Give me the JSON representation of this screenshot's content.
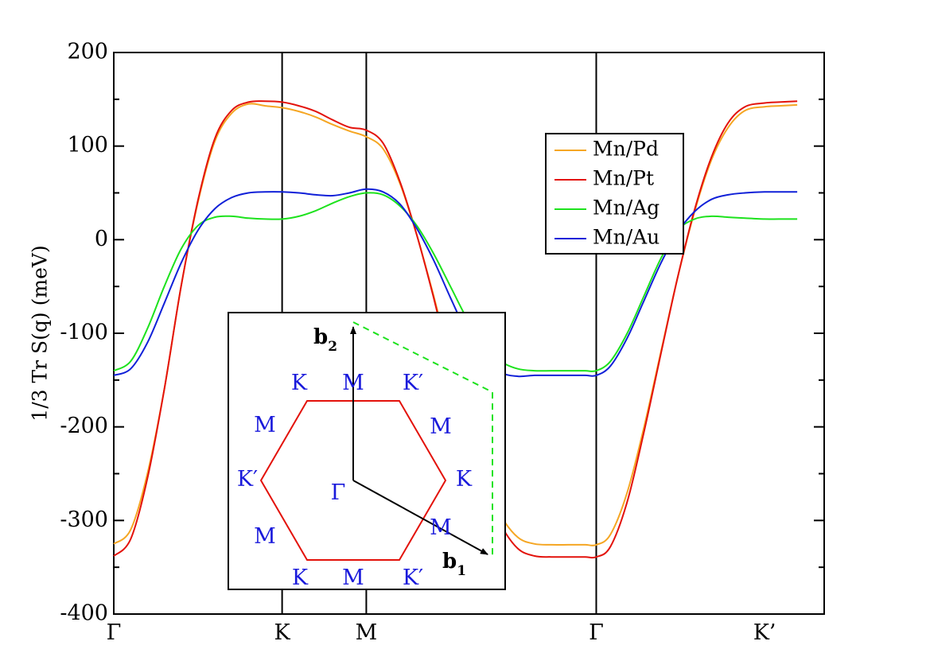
{
  "chart_data": {
    "type": "line",
    "title": "",
    "xlabel": "",
    "ylabel": "1/3 Tr S(q) (meV)",
    "ylim": [
      -400,
      200
    ],
    "yticks": [
      -400,
      -300,
      -200,
      -100,
      0,
      100,
      200
    ],
    "ytick_labels": [
      "-400",
      "-300",
      "-200",
      "-100",
      "0",
      "100",
      "200"
    ],
    "xlim": [
      0,
      4.22
    ],
    "xticks": [
      {
        "label": "Γ",
        "x": 0.0
      },
      {
        "label": "K",
        "x": 1.0
      },
      {
        "label": "M",
        "x": 1.5
      },
      {
        "label": "Γ",
        "x": 2.866
      },
      {
        "label": "K’",
        "x": 3.866
      }
    ],
    "grid": false,
    "legend_position": "top-right",
    "series": [
      {
        "name": "Mn/Pd",
        "color": "#f5a623",
        "x": [
          0.0,
          0.1,
          0.2,
          0.3,
          0.4,
          0.5,
          0.6,
          0.7,
          0.8,
          0.9,
          1.0,
          1.1,
          1.2,
          1.3,
          1.4,
          1.5,
          1.6,
          1.7,
          1.8,
          1.9,
          2.0,
          2.1,
          2.2,
          2.3,
          2.4,
          2.5,
          2.6,
          2.7,
          2.8,
          2.866,
          2.95,
          3.05,
          3.15,
          3.25,
          3.35,
          3.45,
          3.55,
          3.65,
          3.75,
          3.866,
          3.95,
          4.06
        ],
        "values": [
          -325,
          -310,
          -250,
          -160,
          -50,
          40,
          105,
          135,
          145,
          143,
          141,
          137,
          131,
          123,
          116,
          110,
          97,
          60,
          5,
          -60,
          -130,
          -200,
          -255,
          -295,
          -318,
          -325,
          -326,
          -326,
          -326,
          -326,
          -315,
          -270,
          -200,
          -120,
          -40,
          30,
          85,
          120,
          138,
          142,
          143,
          144
        ]
      },
      {
        "name": "Mn/Pt",
        "color": "#e3120b",
        "x": [
          0.0,
          0.1,
          0.2,
          0.3,
          0.4,
          0.5,
          0.6,
          0.7,
          0.8,
          0.9,
          1.0,
          1.1,
          1.2,
          1.3,
          1.4,
          1.5,
          1.6,
          1.7,
          1.8,
          1.9,
          2.0,
          2.1,
          2.2,
          2.3,
          2.4,
          2.5,
          2.6,
          2.7,
          2.8,
          2.866,
          2.95,
          3.05,
          3.15,
          3.25,
          3.35,
          3.45,
          3.55,
          3.65,
          3.75,
          3.866,
          3.95,
          4.06
        ],
        "values": [
          -338,
          -320,
          -255,
          -160,
          -50,
          42,
          108,
          138,
          147,
          148,
          147,
          143,
          137,
          128,
          120,
          117,
          103,
          62,
          5,
          -62,
          -135,
          -208,
          -265,
          -305,
          -330,
          -338,
          -339,
          -339,
          -339,
          -339,
          -328,
          -280,
          -205,
          -122,
          -40,
          32,
          88,
          125,
          142,
          146,
          147,
          148
        ]
      },
      {
        "name": "Mn/Ag",
        "color": "#1de21d",
        "x": [
          0.0,
          0.1,
          0.2,
          0.3,
          0.4,
          0.5,
          0.6,
          0.7,
          0.8,
          0.9,
          1.0,
          1.1,
          1.2,
          1.3,
          1.4,
          1.5,
          1.6,
          1.7,
          1.8,
          1.9,
          2.0,
          2.1,
          2.2,
          2.3,
          2.4,
          2.5,
          2.6,
          2.7,
          2.8,
          2.866,
          2.95,
          3.05,
          3.15,
          3.25,
          3.35,
          3.45,
          3.55,
          3.65,
          3.75,
          3.866,
          3.95,
          4.06
        ],
        "values": [
          -140,
          -130,
          -95,
          -50,
          -10,
          15,
          24,
          25,
          23,
          22,
          22,
          25,
          31,
          39,
          46,
          50,
          48,
          36,
          15,
          -15,
          -50,
          -85,
          -112,
          -130,
          -138,
          -140,
          -140,
          -140,
          -140,
          -140,
          -130,
          -100,
          -60,
          -20,
          10,
          22,
          25,
          24,
          23,
          22,
          22,
          22
        ]
      },
      {
        "name": "Mn/Au",
        "color": "#1020d8",
        "x": [
          0.0,
          0.1,
          0.2,
          0.3,
          0.4,
          0.5,
          0.6,
          0.7,
          0.8,
          0.9,
          1.0,
          1.1,
          1.2,
          1.3,
          1.4,
          1.5,
          1.6,
          1.7,
          1.8,
          1.9,
          2.0,
          2.1,
          2.2,
          2.3,
          2.4,
          2.5,
          2.6,
          2.7,
          2.8,
          2.866,
          2.95,
          3.05,
          3.15,
          3.25,
          3.35,
          3.45,
          3.55,
          3.65,
          3.75,
          3.866,
          3.95,
          4.06
        ],
        "values": [
          -145,
          -138,
          -110,
          -68,
          -25,
          10,
          33,
          45,
          50,
          51,
          51,
          50,
          48,
          47,
          50,
          54,
          51,
          38,
          12,
          -22,
          -62,
          -100,
          -128,
          -142,
          -146,
          -145,
          -145,
          -145,
          -145,
          -145,
          -135,
          -105,
          -65,
          -25,
          8,
          30,
          43,
          48,
          50,
          51,
          51,
          51
        ]
      }
    ],
    "inset": {
      "vector_b1": "b",
      "vector_b1_sub": "1",
      "vector_b2": "b",
      "vector_b2_sub": "2",
      "hex_color": "#e3120b",
      "dashed_color": "#1de21d",
      "labels": {
        "gamma": "Γ",
        "top_left": "K",
        "top_mid": "M",
        "top_right": "K′",
        "upper_left": "M",
        "upper_right": "M",
        "left": "K′",
        "right": "K",
        "lower_left": "M",
        "lower_right": "M",
        "bottom_left": "K",
        "bottom_mid": "M",
        "bottom_right": "K′"
      }
    }
  }
}
